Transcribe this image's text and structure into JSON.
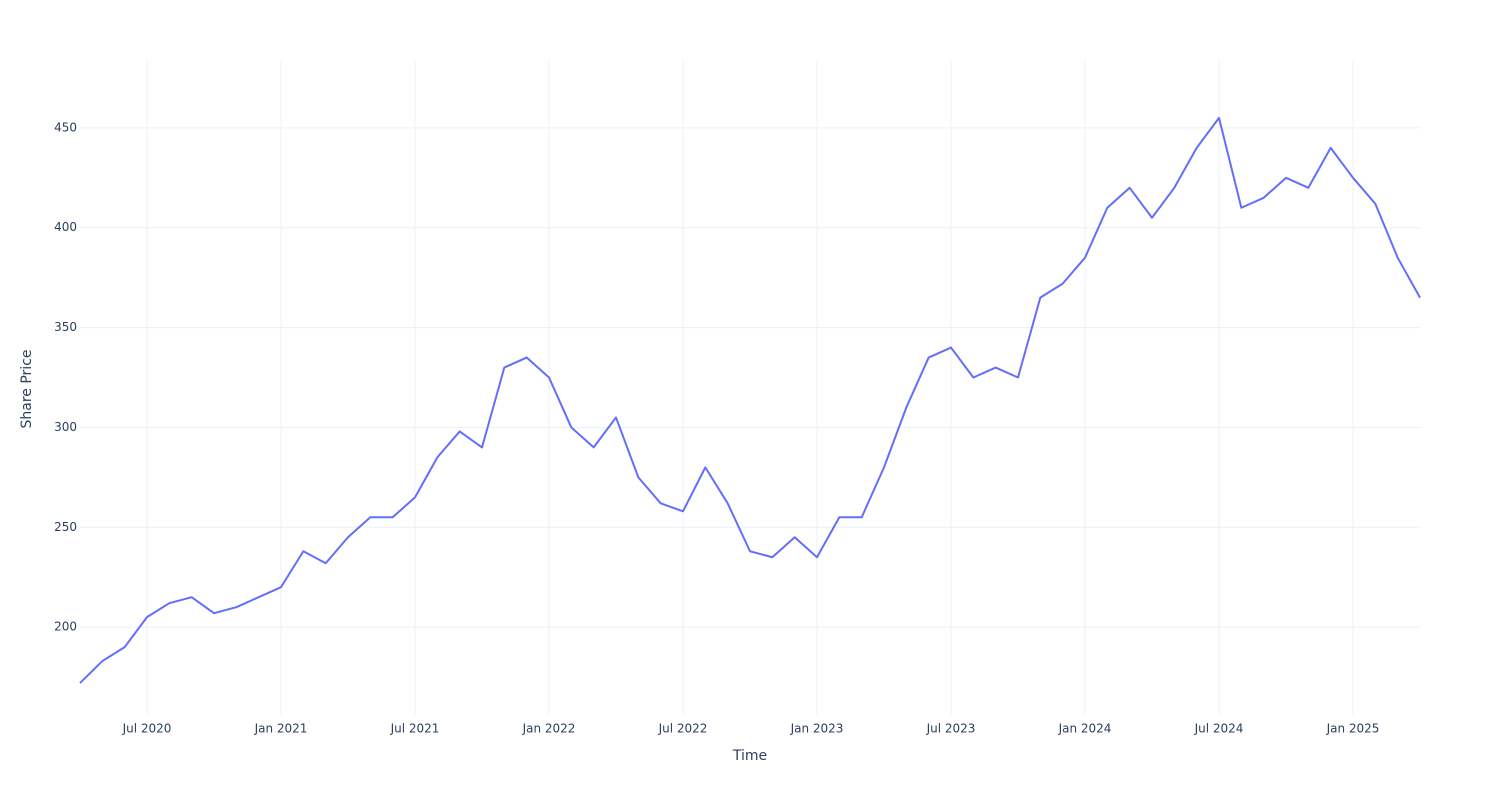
{
  "chart_data": {
    "type": "line",
    "x_label": "Time",
    "y_label": "Share Price",
    "x": [
      "2020-04",
      "2020-05",
      "2020-06",
      "2020-07",
      "2020-08",
      "2020-09",
      "2020-10",
      "2020-11",
      "2020-12",
      "2021-01",
      "2021-02",
      "2021-03",
      "2021-04",
      "2021-05",
      "2021-06",
      "2021-07",
      "2021-08",
      "2021-09",
      "2021-10",
      "2021-11",
      "2021-12",
      "2022-01",
      "2022-02",
      "2022-03",
      "2022-04",
      "2022-05",
      "2022-06",
      "2022-07",
      "2022-08",
      "2022-09",
      "2022-10",
      "2022-11",
      "2022-12",
      "2023-01",
      "2023-02",
      "2023-03",
      "2023-04",
      "2023-05",
      "2023-06",
      "2023-07",
      "2023-08",
      "2023-09",
      "2023-10",
      "2023-11",
      "2023-12",
      "2024-01",
      "2024-02",
      "2024-03",
      "2024-04",
      "2024-05",
      "2024-06",
      "2024-07",
      "2024-08",
      "2024-09",
      "2024-10",
      "2024-11",
      "2024-12",
      "2025-01",
      "2025-02",
      "2025-03",
      "2025-04"
    ],
    "series": [
      {
        "name": "Share Price",
        "color": "#636efa",
        "values": [
          172,
          183,
          190,
          205,
          212,
          215,
          207,
          210,
          215,
          220,
          238,
          232,
          245,
          255,
          255,
          265,
          285,
          298,
          290,
          330,
          335,
          325,
          300,
          290,
          305,
          275,
          262,
          258,
          280,
          262,
          238,
          235,
          245,
          235,
          255,
          255,
          280,
          310,
          335,
          340,
          325,
          330,
          325,
          365,
          372,
          385,
          410,
          420,
          405,
          420,
          440,
          455,
          410,
          415,
          425,
          420,
          440,
          425,
          412,
          385,
          365
        ]
      }
    ],
    "xlim": [
      "2020-04",
      "2025-04"
    ],
    "xticks": [
      {
        "value": "2020-07",
        "label": "Jul 2020"
      },
      {
        "value": "2021-01",
        "label": "Jan 2021"
      },
      {
        "value": "2021-07",
        "label": "Jul 2021"
      },
      {
        "value": "2022-01",
        "label": "Jan 2022"
      },
      {
        "value": "2022-07",
        "label": "Jul 2022"
      },
      {
        "value": "2023-01",
        "label": "Jan 2023"
      },
      {
        "value": "2023-07",
        "label": "Jul 2023"
      },
      {
        "value": "2024-01",
        "label": "Jan 2024"
      },
      {
        "value": "2024-07",
        "label": "Jul 2024"
      },
      {
        "value": "2025-01",
        "label": "Jan 2025"
      }
    ],
    "ylim": [
      156,
      484
    ],
    "yticks": [
      200,
      250,
      300,
      350,
      400,
      450
    ],
    "grid": true
  }
}
